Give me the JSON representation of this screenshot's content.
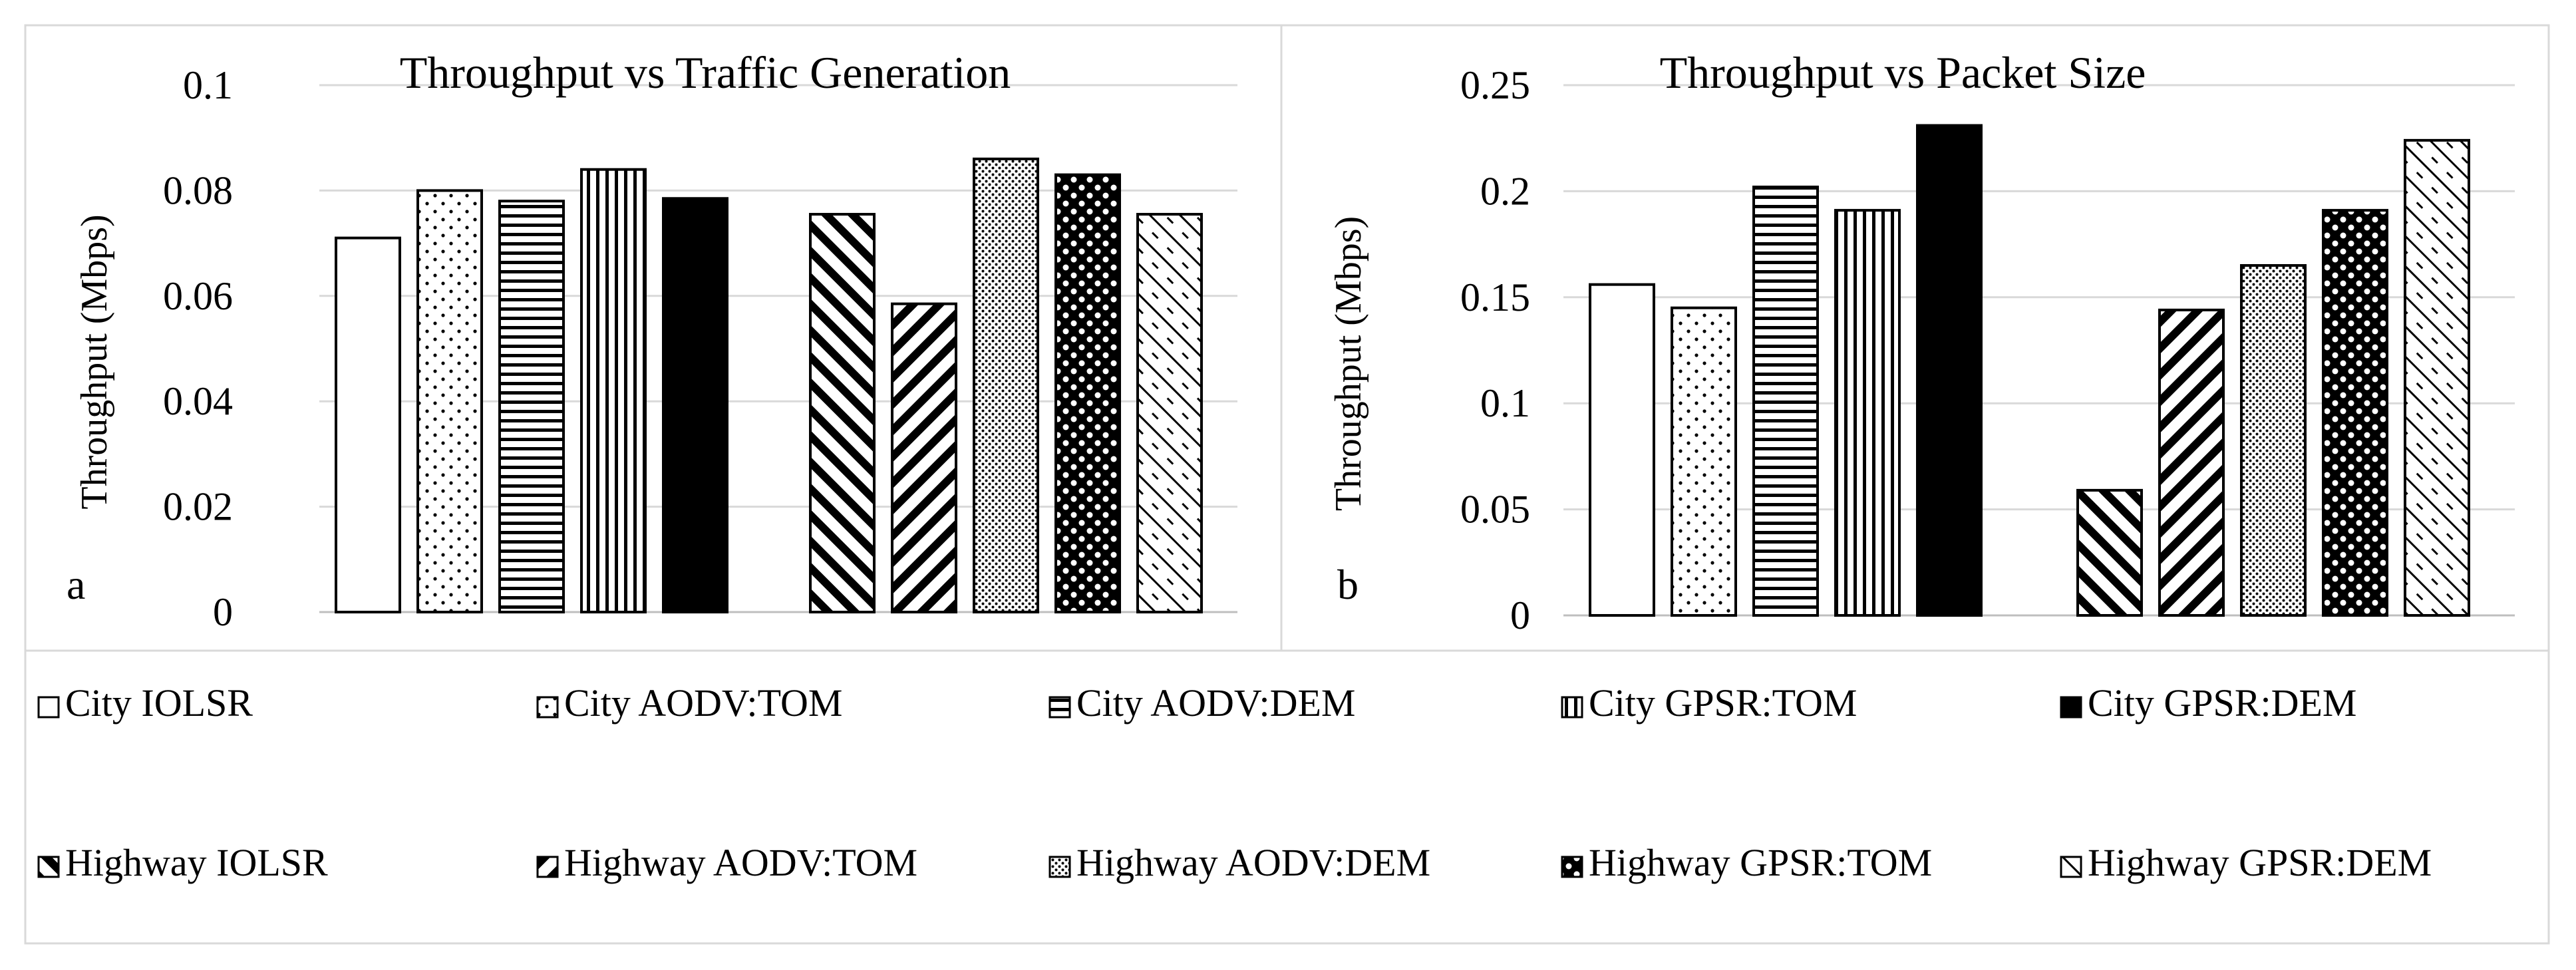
{
  "chart_data": [
    {
      "type": "bar",
      "panel_label": "a",
      "title": "Throughput vs Traffic Generation",
      "xlabel": "",
      "ylabel": "Throughput (Mbps)",
      "ylim": [
        0,
        0.1
      ],
      "yticks": [
        "0",
        "0.02",
        "0.04",
        "0.06",
        "0.08",
        "0.1"
      ],
      "grid": true,
      "legend_position": "bottom",
      "series": [
        {
          "name": "City IOLSR",
          "values": [
            0.071
          ]
        },
        {
          "name": "City AODV:TOM",
          "values": [
            0.08
          ]
        },
        {
          "name": "City AODV:DEM",
          "values": [
            0.078
          ]
        },
        {
          "name": "City GPSR:TOM",
          "values": [
            0.084
          ]
        },
        {
          "name": "City GPSR:DEM",
          "values": [
            0.0785
          ]
        },
        {
          "name": "Highway IOLSR",
          "values": [
            0.0755
          ]
        },
        {
          "name": "Highway AODV:TOM",
          "values": [
            0.0585
          ]
        },
        {
          "name": "Highway AODV:DEM",
          "values": [
            0.086
          ]
        },
        {
          "name": "Highway GPSR:TOM",
          "values": [
            0.083
          ]
        },
        {
          "name": "Highway GPSR:DEM",
          "values": [
            0.0755
          ]
        }
      ]
    },
    {
      "type": "bar",
      "panel_label": "b",
      "title": "Throughput vs Packet Size",
      "xlabel": "",
      "ylabel": "Throughput (Mbps)",
      "ylim": [
        0,
        0.25
      ],
      "yticks": [
        "0",
        "0.05",
        "0.1",
        "0.15",
        "0.2",
        "0.25"
      ],
      "grid": true,
      "legend_position": "bottom",
      "series": [
        {
          "name": "City IOLSR",
          "values": [
            0.156
          ]
        },
        {
          "name": "City AODV:TOM",
          "values": [
            0.145
          ]
        },
        {
          "name": "City AODV:DEM",
          "values": [
            0.202
          ]
        },
        {
          "name": "City GPSR:TOM",
          "values": [
            0.191
          ]
        },
        {
          "name": "City GPSR:DEM",
          "values": [
            0.231
          ]
        },
        {
          "name": "Highway IOLSR",
          "values": [
            0.059
          ]
        },
        {
          "name": "Highway AODV:TOM",
          "values": [
            0.144
          ]
        },
        {
          "name": "Highway AODV:DEM",
          "values": [
            0.165
          ]
        },
        {
          "name": "Highway GPSR:TOM",
          "values": [
            0.191
          ]
        },
        {
          "name": "Highway GPSR:DEM",
          "values": [
            0.224
          ]
        }
      ]
    }
  ],
  "legend": {
    "items": [
      {
        "label": "City IOLSR",
        "pattern": "white"
      },
      {
        "label": "City AODV:TOM",
        "pattern": "dots-sparse"
      },
      {
        "label": "City AODV:DEM",
        "pattern": "hlines"
      },
      {
        "label": "City GPSR:TOM",
        "pattern": "vlines"
      },
      {
        "label": "City GPSR:DEM",
        "pattern": "black"
      },
      {
        "label": "Highway IOLSR",
        "pattern": "diag-up-wide"
      },
      {
        "label": "Highway AODV:TOM",
        "pattern": "diag-down-wide"
      },
      {
        "label": "Highway AODV:DEM",
        "pattern": "dots-dense"
      },
      {
        "label": "Highway GPSR:TOM",
        "pattern": "checker"
      },
      {
        "label": "Highway GPSR:DEM",
        "pattern": "diag-up-dash"
      }
    ]
  },
  "colors": {
    "bar_outline": "#000000",
    "grid": "#d9d9d9",
    "frame": "#d9d9d9",
    "text": "#000000"
  }
}
